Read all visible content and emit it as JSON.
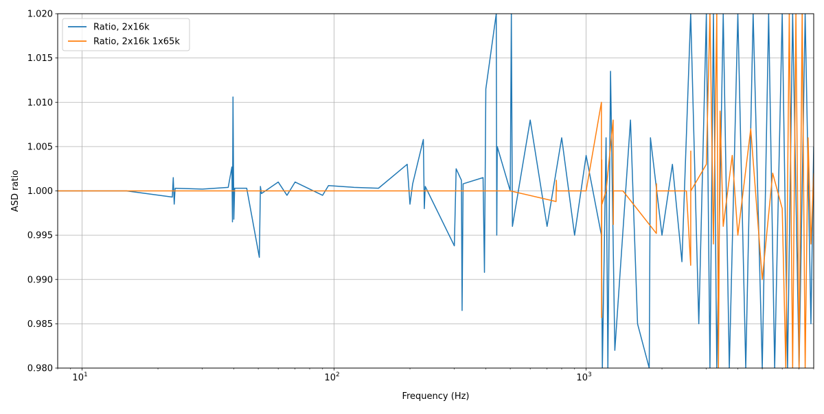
{
  "chart_data": {
    "type": "line",
    "title": "",
    "xlabel": "Frequency (Hz)",
    "ylabel": "ASD ratio",
    "xscale": "log",
    "xlim": [
      8,
      8000
    ],
    "ylim": [
      0.98,
      1.02
    ],
    "grid": true,
    "legend_placement": "top-left",
    "x_ticks": [
      {
        "value": 10,
        "base": "10",
        "exp": "1"
      },
      {
        "value": 100,
        "base": "10",
        "exp": "2"
      },
      {
        "value": 1000,
        "base": "10",
        "exp": "3"
      }
    ],
    "y_ticks": [
      "0.980",
      "0.985",
      "0.990",
      "0.995",
      "1.000",
      "1.005",
      "1.010",
      "1.015",
      "1.020"
    ],
    "series": [
      {
        "name": "Ratio, 2x16k",
        "color": "#1f77b4",
        "x": [
          8,
          15,
          22.8,
          23,
          23.2,
          23.4,
          30,
          38,
          39.3,
          39.5,
          39.7,
          40,
          40.3,
          45,
          50.5,
          51,
          51.5,
          60,
          65,
          70,
          90,
          95,
          120,
          150,
          195,
          200,
          205,
          226,
          228,
          230,
          300,
          305,
          320,
          322,
          325,
          390,
          395,
          400,
          440,
          442,
          444,
          500,
          505,
          510,
          600,
          700,
          800,
          900,
          1000,
          1150,
          1160,
          1200,
          1220,
          1250,
          1300,
          1500,
          1600,
          1780,
          1800,
          2000,
          2200,
          2400,
          2600,
          2800,
          3000,
          3100,
          3200,
          3300,
          3500,
          3700,
          4000,
          4300,
          4600,
          5000,
          5300,
          5600,
          6000,
          6300,
          6600,
          7000,
          7400,
          7800,
          8000
        ],
        "y": [
          1.0,
          1.0,
          0.9993,
          1.0015,
          0.9985,
          1.0003,
          1.0002,
          1.0004,
          1.0027,
          0.9965,
          1.0106,
          0.9968,
          1.0003,
          1.0003,
          0.9925,
          1.0005,
          0.9997,
          1.001,
          0.9995,
          1.001,
          0.9995,
          1.0006,
          1.0004,
          1.0003,
          1.003,
          0.9985,
          1.0008,
          1.0058,
          0.998,
          1.0005,
          0.9938,
          1.0025,
          1.0012,
          0.9865,
          1.0008,
          1.0015,
          0.9908,
          1.0115,
          1.02,
          0.995,
          1.005,
          1.0,
          1.02,
          0.996,
          1.008,
          0.996,
          1.006,
          0.995,
          1.004,
          0.995,
          0.98,
          1.006,
          0.98,
          1.0135,
          0.982,
          1.008,
          0.985,
          0.98,
          1.006,
          0.995,
          1.003,
          0.992,
          1.02,
          0.985,
          1.02,
          0.98,
          1.02,
          0.98,
          1.02,
          0.98,
          1.02,
          0.98,
          1.02,
          0.98,
          1.02,
          0.98,
          1.02,
          0.98,
          1.02,
          0.98,
          1.02,
          0.985,
          1.005
        ]
      },
      {
        "name": "Ratio, 2x16k 1x65k",
        "color": "#ff7f0e",
        "x": [
          8,
          100,
          500,
          760,
          762,
          764,
          1000,
          1150,
          1152,
          1154,
          1156,
          1200,
          1280,
          1282,
          1284,
          1400,
          1900,
          1902,
          1904,
          2500,
          2600,
          2602,
          2604,
          3000,
          3100,
          3200,
          3300,
          3350,
          3400,
          3500,
          3800,
          4000,
          4500,
          5000,
          5500,
          6000,
          6200,
          6400,
          6600,
          6800,
          7000,
          7200,
          7400,
          7600,
          7800,
          8000
        ],
        "y": [
          1.0,
          1.0,
          1.0,
          0.9988,
          1.0012,
          1.0,
          1.0,
          1.01,
          0.9857,
          1.0035,
          0.9985,
          1.0,
          1.008,
          0.9962,
          1.0,
          1.0,
          0.9952,
          1.0008,
          1.0,
          1.0,
          0.9916,
          1.0045,
          1.0,
          1.003,
          1.02,
          0.994,
          1.02,
          0.98,
          1.009,
          0.996,
          1.004,
          0.995,
          1.007,
          0.99,
          1.002,
          0.998,
          0.98,
          1.02,
          0.98,
          1.02,
          0.98,
          1.02,
          0.98,
          1.006,
          0.994,
          1.002
        ]
      }
    ]
  }
}
